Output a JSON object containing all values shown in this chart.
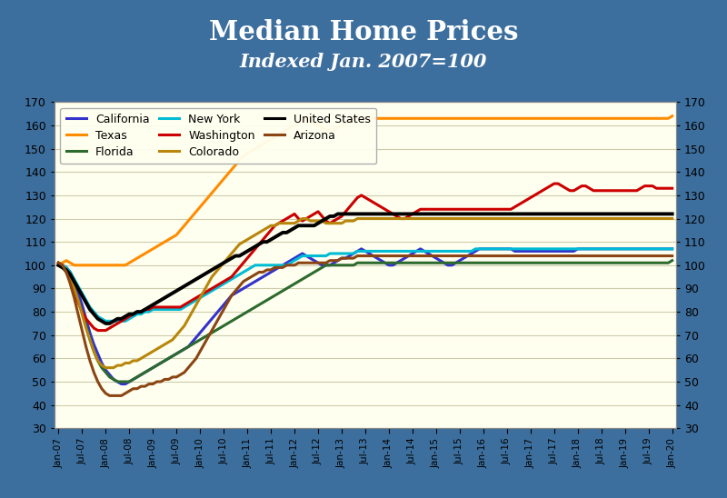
{
  "title": "Median Home Prices",
  "subtitle": "Indexed Jan. 2007=100",
  "title_bg_color": "#3d6f9e",
  "title_text_color": "#ffffff",
  "border_color_top": "#c8705a",
  "plot_bg_color": "#fffff0",
  "outer_bg_color": "#3d6f9e",
  "ylim": [
    30,
    170
  ],
  "yticks": [
    30,
    40,
    50,
    60,
    70,
    80,
    90,
    100,
    110,
    120,
    130,
    140,
    150,
    160,
    170
  ],
  "x_labels": [
    "Jan-07",
    "Jul-07",
    "Jan-08",
    "Jul-08",
    "Jan-09",
    "Jul-09",
    "Jan-10",
    "Jul-10",
    "Jan-11",
    "Jul-11",
    "Jan-12",
    "Jul-12",
    "Jan-13",
    "Jul-13",
    "Jan-14",
    "Jul-14",
    "Jan-15",
    "Jul-15",
    "Jan-16",
    "Jul-16",
    "Jan-17",
    "Jul-17",
    "Jan-18",
    "Jul-18",
    "Jan-19",
    "Jul-19",
    "Jan-20"
  ],
  "legend_order": [
    "California",
    "Texas",
    "Florida",
    "New York",
    "Washington",
    "Colorado",
    "United States",
    "Arizona"
  ],
  "series": {
    "California": {
      "color": "#3333cc",
      "linewidth": 2.2,
      "values": [
        101,
        100,
        99,
        97,
        93,
        88,
        83,
        77,
        71,
        66,
        62,
        58,
        55,
        53,
        51,
        50,
        49,
        49,
        50,
        51,
        52,
        53,
        54,
        55,
        56,
        57,
        58,
        59,
        60,
        61,
        62,
        63,
        64,
        65,
        67,
        69,
        71,
        73,
        75,
        77,
        79,
        81,
        83,
        85,
        87,
        88,
        89,
        90,
        91,
        92,
        93,
        94,
        95,
        96,
        97,
        98,
        99,
        100,
        101,
        102,
        103,
        104,
        105,
        104,
        103,
        102,
        101,
        100,
        100,
        100,
        101,
        102,
        103,
        103,
        104,
        105,
        106,
        107,
        106,
        105,
        104,
        103,
        102,
        101,
        100,
        100,
        101,
        102,
        103,
        104,
        105,
        106,
        107,
        106,
        105,
        104,
        103,
        102,
        101,
        100,
        100,
        101,
        102,
        103,
        104,
        105,
        106,
        107,
        107,
        107,
        107,
        107,
        107,
        107,
        107,
        107,
        106,
        106,
        106,
        106,
        106,
        106,
        106,
        106,
        106,
        106,
        106,
        106,
        106,
        106,
        106,
        106,
        107,
        107,
        107,
        107,
        107,
        107,
        107,
        107,
        107,
        107,
        107,
        107,
        107,
        107,
        107,
        107,
        107,
        107,
        107,
        107,
        107,
        107,
        107,
        107,
        107
      ]
    },
    "Texas": {
      "color": "#ff8c00",
      "linewidth": 2.2,
      "values": [
        100,
        101,
        102,
        101,
        100,
        100,
        100,
        100,
        100,
        100,
        100,
        100,
        100,
        100,
        100,
        100,
        100,
        100,
        101,
        102,
        103,
        104,
        105,
        106,
        107,
        108,
        109,
        110,
        111,
        112,
        113,
        115,
        117,
        119,
        121,
        123,
        125,
        127,
        129,
        131,
        133,
        135,
        137,
        139,
        141,
        143,
        145,
        147,
        148,
        149,
        150,
        151,
        152,
        153,
        154,
        155,
        156,
        157,
        158,
        159,
        160,
        161,
        162,
        163,
        162,
        161,
        160,
        159,
        158,
        158,
        158,
        159,
        160,
        161,
        162,
        163,
        163,
        163,
        163,
        163,
        163,
        163,
        163,
        163,
        163,
        163,
        163,
        163,
        163,
        163,
        163,
        163,
        163,
        163,
        163,
        163,
        163,
        163,
        163,
        163,
        163,
        163,
        163,
        163,
        163,
        163,
        163,
        163,
        163,
        163,
        163,
        163,
        163,
        163,
        163,
        163,
        163,
        163,
        163,
        163,
        163,
        163,
        163,
        163,
        163,
        163,
        163,
        163,
        163,
        163,
        163,
        163,
        163,
        163,
        163,
        163,
        163,
        163,
        163,
        163,
        163,
        163,
        163,
        163,
        163,
        163,
        163,
        163,
        163,
        163,
        163,
        163,
        163,
        163,
        163,
        163,
        164
      ]
    },
    "Florida": {
      "color": "#2d6a2d",
      "linewidth": 2.2,
      "values": [
        100,
        99,
        97,
        94,
        90,
        85,
        80,
        74,
        68,
        63,
        59,
        56,
        54,
        52,
        51,
        50,
        50,
        50,
        50,
        51,
        52,
        53,
        54,
        55,
        56,
        57,
        58,
        59,
        60,
        61,
        62,
        63,
        64,
        65,
        66,
        67,
        68,
        69,
        70,
        71,
        72,
        73,
        74,
        75,
        76,
        77,
        78,
        79,
        80,
        81,
        82,
        83,
        84,
        85,
        86,
        87,
        88,
        89,
        90,
        91,
        92,
        93,
        94,
        95,
        96,
        97,
        98,
        99,
        100,
        100,
        100,
        100,
        100,
        100,
        100,
        100,
        101,
        101,
        101,
        101,
        101,
        101,
        101,
        101,
        101,
        101,
        101,
        101,
        101,
        101,
        101,
        101,
        101,
        101,
        101,
        101,
        101,
        101,
        101,
        101,
        101,
        101,
        101,
        101,
        101,
        101,
        101,
        101,
        101,
        101,
        101,
        101,
        101,
        101,
        101,
        101,
        101,
        101,
        101,
        101,
        101,
        101,
        101,
        101,
        101,
        101,
        101,
        101,
        101,
        101,
        101,
        101,
        101,
        101,
        101,
        101,
        101,
        101,
        101,
        101,
        101,
        101,
        101,
        101,
        101,
        101,
        101,
        101,
        101,
        101,
        101,
        101,
        101,
        101,
        101,
        101,
        102
      ]
    },
    "New York": {
      "color": "#00bcd4",
      "linewidth": 2.2,
      "values": [
        100,
        100,
        99,
        97,
        94,
        91,
        88,
        85,
        82,
        80,
        78,
        77,
        76,
        76,
        76,
        76,
        76,
        76,
        77,
        78,
        79,
        79,
        80,
        80,
        81,
        81,
        81,
        81,
        81,
        81,
        81,
        81,
        82,
        83,
        84,
        85,
        86,
        87,
        88,
        89,
        90,
        91,
        92,
        93,
        94,
        95,
        96,
        97,
        98,
        99,
        100,
        100,
        100,
        100,
        100,
        100,
        100,
        100,
        100,
        101,
        102,
        103,
        104,
        104,
        104,
        104,
        104,
        104,
        104,
        105,
        105,
        105,
        105,
        105,
        105,
        105,
        106,
        106,
        106,
        106,
        106,
        106,
        106,
        106,
        106,
        106,
        106,
        106,
        106,
        106,
        106,
        106,
        106,
        106,
        106,
        106,
        106,
        106,
        106,
        106,
        106,
        106,
        106,
        106,
        106,
        106,
        107,
        107,
        107,
        107,
        107,
        107,
        107,
        107,
        107,
        107,
        107,
        107,
        107,
        107,
        107,
        107,
        107,
        107,
        107,
        107,
        107,
        107,
        107,
        107,
        107,
        107,
        107,
        107,
        107,
        107,
        107,
        107,
        107,
        107,
        107,
        107,
        107,
        107,
        107,
        107,
        107,
        107,
        107,
        107,
        107,
        107,
        107,
        107,
        107,
        107,
        107
      ]
    },
    "Washington": {
      "color": "#cc0000",
      "linewidth": 2.2,
      "values": [
        101,
        100,
        97,
        93,
        88,
        84,
        80,
        77,
        75,
        73,
        72,
        72,
        72,
        73,
        74,
        75,
        76,
        77,
        78,
        79,
        80,
        80,
        81,
        81,
        82,
        82,
        82,
        82,
        82,
        82,
        82,
        82,
        83,
        84,
        85,
        86,
        87,
        88,
        89,
        90,
        91,
        92,
        93,
        94,
        95,
        97,
        99,
        101,
        103,
        105,
        107,
        109,
        111,
        113,
        115,
        117,
        118,
        119,
        120,
        121,
        122,
        120,
        119,
        120,
        121,
        122,
        123,
        121,
        119,
        118,
        119,
        120,
        121,
        123,
        125,
        127,
        129,
        130,
        129,
        128,
        127,
        126,
        125,
        124,
        123,
        122,
        121,
        120,
        120,
        121,
        122,
        123,
        124,
        124,
        124,
        124,
        124,
        124,
        124,
        124,
        124,
        124,
        124,
        124,
        124,
        124,
        124,
        124,
        124,
        124,
        124,
        124,
        124,
        124,
        124,
        124,
        125,
        126,
        127,
        128,
        129,
        130,
        131,
        132,
        133,
        134,
        135,
        135,
        134,
        133,
        132,
        132,
        133,
        134,
        134,
        133,
        132,
        132,
        132,
        132,
        132,
        132,
        132,
        132,
        132,
        132,
        132,
        132,
        133,
        134,
        134,
        134,
        133,
        133,
        133,
        133,
        133
      ]
    },
    "Colorado": {
      "color": "#b8860b",
      "linewidth": 2.2,
      "values": [
        101,
        100,
        98,
        95,
        90,
        85,
        79,
        73,
        68,
        63,
        59,
        57,
        56,
        56,
        56,
        57,
        57,
        58,
        58,
        59,
        59,
        60,
        61,
        62,
        63,
        64,
        65,
        66,
        67,
        68,
        70,
        72,
        74,
        77,
        80,
        83,
        86,
        89,
        92,
        95,
        97,
        99,
        101,
        103,
        105,
        107,
        109,
        110,
        111,
        112,
        113,
        114,
        115,
        116,
        117,
        117,
        118,
        118,
        118,
        118,
        118,
        119,
        120,
        120,
        119,
        119,
        119,
        119,
        118,
        118,
        118,
        118,
        118,
        119,
        119,
        119,
        120,
        120,
        120,
        120,
        120,
        120,
        120,
        120,
        120,
        120,
        120,
        120,
        120,
        120,
        120,
        120,
        120,
        120,
        120,
        120,
        120,
        120,
        120,
        120,
        120,
        120,
        120,
        120,
        120,
        120,
        120,
        120,
        120,
        120,
        120,
        120,
        120,
        120,
        120,
        120,
        120,
        120,
        120,
        120,
        120,
        120,
        120,
        120,
        120,
        120,
        120,
        120,
        120,
        120,
        120,
        120,
        120,
        120,
        120,
        120,
        120,
        120,
        120,
        120,
        120,
        120,
        120,
        120,
        120,
        120,
        120,
        120,
        120,
        120,
        120,
        120,
        120,
        120,
        120,
        120,
        120
      ]
    },
    "United States": {
      "color": "#000000",
      "linewidth": 2.8,
      "values": [
        100,
        99,
        98,
        96,
        93,
        90,
        87,
        84,
        81,
        79,
        77,
        76,
        75,
        75,
        76,
        77,
        77,
        78,
        79,
        79,
        80,
        80,
        81,
        82,
        83,
        84,
        85,
        86,
        87,
        88,
        89,
        90,
        91,
        92,
        93,
        94,
        95,
        96,
        97,
        98,
        99,
        100,
        101,
        102,
        103,
        104,
        104,
        105,
        106,
        107,
        108,
        109,
        110,
        110,
        111,
        112,
        113,
        114,
        114,
        115,
        116,
        117,
        117,
        117,
        117,
        117,
        118,
        119,
        120,
        121,
        121,
        122,
        122,
        122,
        122,
        122,
        122,
        122,
        122,
        122,
        122,
        122,
        122,
        122,
        122,
        122,
        122,
        122,
        122,
        122,
        122,
        122,
        122,
        122,
        122,
        122,
        122,
        122,
        122,
        122,
        122,
        122,
        122,
        122,
        122,
        122,
        122,
        122,
        122,
        122,
        122,
        122,
        122,
        122,
        122,
        122,
        122,
        122,
        122,
        122,
        122,
        122,
        122,
        122,
        122,
        122,
        122,
        122,
        122,
        122,
        122,
        122,
        122,
        122,
        122,
        122,
        122,
        122,
        122,
        122,
        122,
        122,
        122,
        122,
        122,
        122,
        122,
        122,
        122,
        122,
        122,
        122,
        122,
        122,
        122,
        122,
        122
      ]
    },
    "Arizona": {
      "color": "#8b4513",
      "linewidth": 2.2,
      "values": [
        101,
        100,
        97,
        92,
        86,
        79,
        72,
        65,
        59,
        54,
        50,
        47,
        45,
        44,
        44,
        44,
        44,
        45,
        46,
        47,
        47,
        48,
        48,
        49,
        49,
        50,
        50,
        51,
        51,
        52,
        52,
        53,
        54,
        56,
        58,
        60,
        63,
        66,
        69,
        72,
        75,
        78,
        81,
        84,
        87,
        89,
        91,
        93,
        94,
        95,
        96,
        97,
        97,
        98,
        98,
        99,
        99,
        99,
        100,
        100,
        100,
        101,
        101,
        101,
        101,
        101,
        101,
        101,
        101,
        102,
        102,
        102,
        103,
        103,
        103,
        103,
        104,
        104,
        104,
        104,
        104,
        104,
        104,
        104,
        104,
        104,
        104,
        104,
        104,
        104,
        104,
        104,
        104,
        104,
        104,
        104,
        104,
        104,
        104,
        104,
        104,
        104,
        104,
        104,
        104,
        104,
        104,
        104,
        104,
        104,
        104,
        104,
        104,
        104,
        104,
        104,
        104,
        104,
        104,
        104,
        104,
        104,
        104,
        104,
        104,
        104,
        104,
        104,
        104,
        104,
        104,
        104,
        104,
        104,
        104,
        104,
        104,
        104,
        104,
        104,
        104,
        104,
        104,
        104,
        104,
        104,
        104,
        104,
        104,
        104,
        104,
        104,
        104,
        104,
        104,
        104,
        104
      ]
    }
  }
}
